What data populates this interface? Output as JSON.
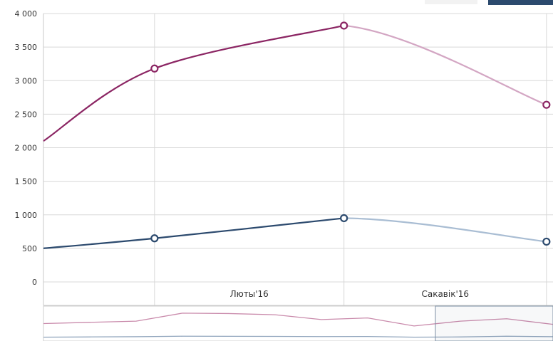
{
  "chart_data": {
    "type": "line",
    "title": "",
    "xlabel": "",
    "ylabel": "",
    "ylim": [
      0,
      4000
    ],
    "yticks": [
      0,
      500,
      1000,
      1500,
      2000,
      2500,
      3000,
      3500,
      4000
    ],
    "ytick_labels": [
      "0",
      "500",
      "1 000",
      "1 500",
      "2 000",
      "2 500",
      "3 000",
      "3 500",
      "4 000"
    ],
    "categories": [
      "Люты'16",
      "Сакавік'16"
    ],
    "grid": true,
    "legend": "none",
    "series": [
      {
        "color": "#8b2563",
        "faded_color": "#d3a6c3",
        "x": [
          "2016-01-15",
          "2016-02-01",
          "2016-03-01",
          "2016-04-01"
        ],
        "values": [
          2100,
          3180,
          3820,
          2640
        ]
      },
      {
        "color": "#2c4a6e",
        "faded_color": "#a9bdd3",
        "x": [
          "2016-01-15",
          "2016-02-01",
          "2016-03-01",
          "2016-04-01"
        ],
        "values": [
          500,
          650,
          950,
          600
        ]
      }
    ],
    "navigator": {
      "series": [
        {
          "color": "#c98aab",
          "values": [
            2000,
            2150,
            2300,
            3300,
            3250,
            3100,
            2500,
            2700,
            1700,
            2300,
            2600,
            1900
          ]
        },
        {
          "color": "#8ea3bb",
          "values": [
            300,
            330,
            360,
            420,
            410,
            400,
            380,
            390,
            300,
            330,
            420,
            360
          ]
        }
      ]
    }
  }
}
